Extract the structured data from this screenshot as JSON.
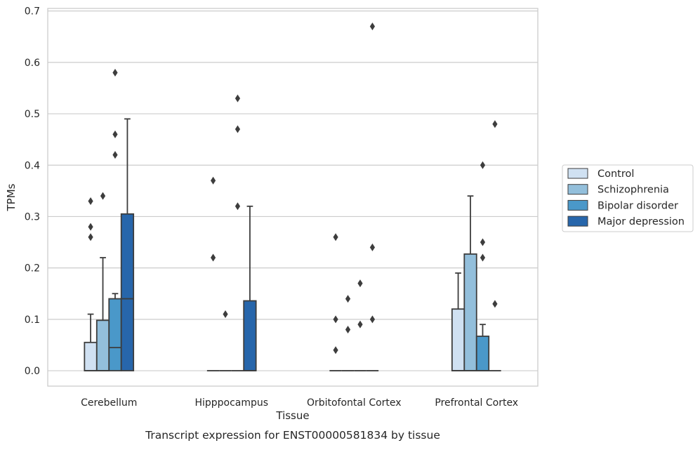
{
  "chart_data": {
    "type": "box",
    "title": "",
    "xlabel": "Tissue",
    "ylabel": "TPMs",
    "caption": "Transcript expression for ENST00000581834 by tissue",
    "ylim": [
      -0.03,
      0.705
    ],
    "yticks": [
      0.0,
      0.1,
      0.2,
      0.3,
      0.4,
      0.5,
      0.6,
      0.7
    ],
    "ytick_labels": [
      "0.0",
      "0.1",
      "0.2",
      "0.3",
      "0.4",
      "0.5",
      "0.6",
      "0.7"
    ],
    "grid": "horizontal",
    "legend_position": "right",
    "categories": [
      "Cerebellum",
      "Hipppocampus",
      "Orbitofontal Cortex",
      "Prefrontal Cortex"
    ],
    "series": [
      {
        "name": "Control",
        "color": "#d0e1f2"
      },
      {
        "name": "Schizophrenia",
        "color": "#93bfdb"
      },
      {
        "name": "Bipolar disorder",
        "color": "#4a98c9"
      },
      {
        "name": "Major depression",
        "color": "#2766ab"
      }
    ],
    "boxes": [
      [
        {
          "q1": 0.0,
          "median": 0.0,
          "q3": 0.055,
          "whisker_low": 0.0,
          "whisker_high": 0.11,
          "outliers": [
            0.26,
            0.28,
            0.33
          ]
        },
        {
          "q1": 0.0,
          "median": 0.0,
          "q3": 0.098,
          "whisker_low": 0.0,
          "whisker_high": 0.22,
          "outliers": [
            0.34
          ]
        },
        {
          "q1": 0.0,
          "median": 0.045,
          "q3": 0.14,
          "whisker_low": 0.0,
          "whisker_high": 0.15,
          "outliers": [
            0.42,
            0.46,
            0.58
          ]
        },
        {
          "q1": 0.0,
          "median": 0.14,
          "q3": 0.305,
          "whisker_low": 0.0,
          "whisker_high": 0.49,
          "outliers": []
        }
      ],
      [
        {
          "q1": 0.0,
          "median": 0.0,
          "q3": 0.0,
          "whisker_low": 0.0,
          "whisker_high": 0.0,
          "outliers": [
            0.22,
            0.37
          ]
        },
        {
          "q1": 0.0,
          "median": 0.0,
          "q3": 0.0,
          "whisker_low": 0.0,
          "whisker_high": 0.0,
          "outliers": [
            0.11
          ]
        },
        {
          "q1": 0.0,
          "median": 0.0,
          "q3": 0.0,
          "whisker_low": 0.0,
          "whisker_high": 0.0,
          "outliers": [
            0.32,
            0.47,
            0.53
          ]
        },
        {
          "q1": 0.0,
          "median": 0.0,
          "q3": 0.136,
          "whisker_low": 0.0,
          "whisker_high": 0.32,
          "outliers": []
        }
      ],
      [
        {
          "q1": 0.0,
          "median": 0.0,
          "q3": 0.0,
          "whisker_low": 0.0,
          "whisker_high": 0.0,
          "outliers": [
            0.04,
            0.1,
            0.26
          ]
        },
        {
          "q1": 0.0,
          "median": 0.0,
          "q3": 0.0,
          "whisker_low": 0.0,
          "whisker_high": 0.0,
          "outliers": [
            0.08,
            0.14
          ]
        },
        {
          "q1": 0.0,
          "median": 0.0,
          "q3": 0.0,
          "whisker_low": 0.0,
          "whisker_high": 0.0,
          "outliers": [
            0.09,
            0.17
          ]
        },
        {
          "q1": 0.0,
          "median": 0.0,
          "q3": 0.0,
          "whisker_low": 0.0,
          "whisker_high": 0.0,
          "outliers": [
            0.1,
            0.24,
            0.67
          ]
        }
      ],
      [
        {
          "q1": 0.0,
          "median": 0.0,
          "q3": 0.12,
          "whisker_low": 0.0,
          "whisker_high": 0.19,
          "outliers": []
        },
        {
          "q1": 0.0,
          "median": 0.0,
          "q3": 0.227,
          "whisker_low": 0.0,
          "whisker_high": 0.34,
          "outliers": []
        },
        {
          "q1": 0.0,
          "median": 0.0,
          "q3": 0.067,
          "whisker_low": 0.0,
          "whisker_high": 0.09,
          "outliers": [
            0.22,
            0.25,
            0.4
          ]
        },
        {
          "q1": 0.0,
          "median": 0.0,
          "q3": 0.0,
          "whisker_low": 0.0,
          "whisker_high": 0.0,
          "outliers": [
            0.13,
            0.48
          ]
        }
      ]
    ]
  }
}
